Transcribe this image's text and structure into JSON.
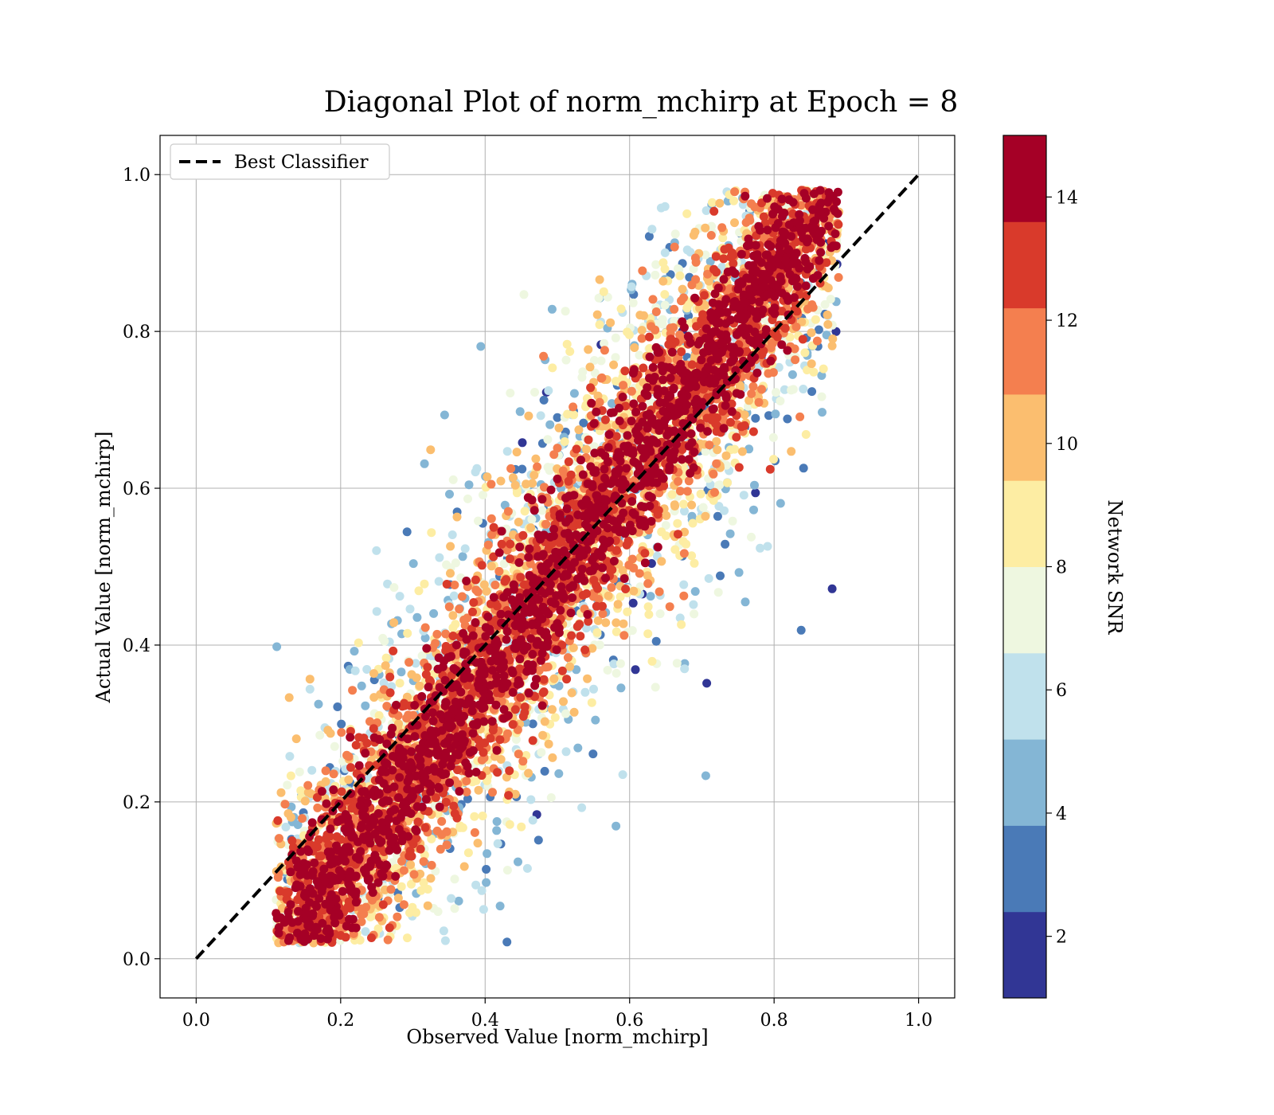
{
  "chart_data": {
    "type": "scatter",
    "title": "Diagonal Plot of norm_mchirp at Epoch = 8",
    "xlabel": "Observed Value [norm_mchirp]",
    "ylabel": "Actual Value [norm_mchirp]",
    "xlim": [
      -0.05,
      1.05
    ],
    "ylim": [
      -0.05,
      1.05
    ],
    "xticks": [
      0.0,
      0.2,
      0.4,
      0.6,
      0.8,
      1.0
    ],
    "yticks": [
      0.0,
      0.2,
      0.4,
      0.6,
      0.8,
      1.0
    ],
    "xtick_labels": [
      "0.0",
      "0.2",
      "0.4",
      "0.6",
      "0.8",
      "1.0"
    ],
    "ytick_labels": [
      "0.0",
      "0.2",
      "0.4",
      "0.6",
      "0.8",
      "1.0"
    ],
    "grid": true,
    "legend": {
      "placement": "top-left",
      "entries": [
        "Best Classifier"
      ]
    },
    "reference_line": {
      "name": "Best Classifier",
      "style": "dashed",
      "color": "#000000",
      "x": [
        0.0,
        1.0
      ],
      "y": [
        0.0,
        1.0
      ]
    },
    "colorbar": {
      "label": "Network SNR",
      "range": [
        1,
        15
      ],
      "ticks": [
        2,
        4,
        6,
        8,
        10,
        12,
        14
      ],
      "tick_labels": [
        "2",
        "4",
        "6",
        "8",
        "10",
        "12",
        "14"
      ],
      "colormap": "RdYlBu_r",
      "colors": [
        "#313695",
        "#4a7ab7",
        "#84b6d5",
        "#c0e1ec",
        "#eef7e0",
        "#fdeda3",
        "#fbbe6f",
        "#f47f4f",
        "#d93a2b",
        "#a50026"
      ]
    },
    "point_density": {
      "description_free": true,
      "band_center_slope": 1.0,
      "high_snr_band_halfwidth": 0.12,
      "low_snr_spread": 0.3
    }
  }
}
